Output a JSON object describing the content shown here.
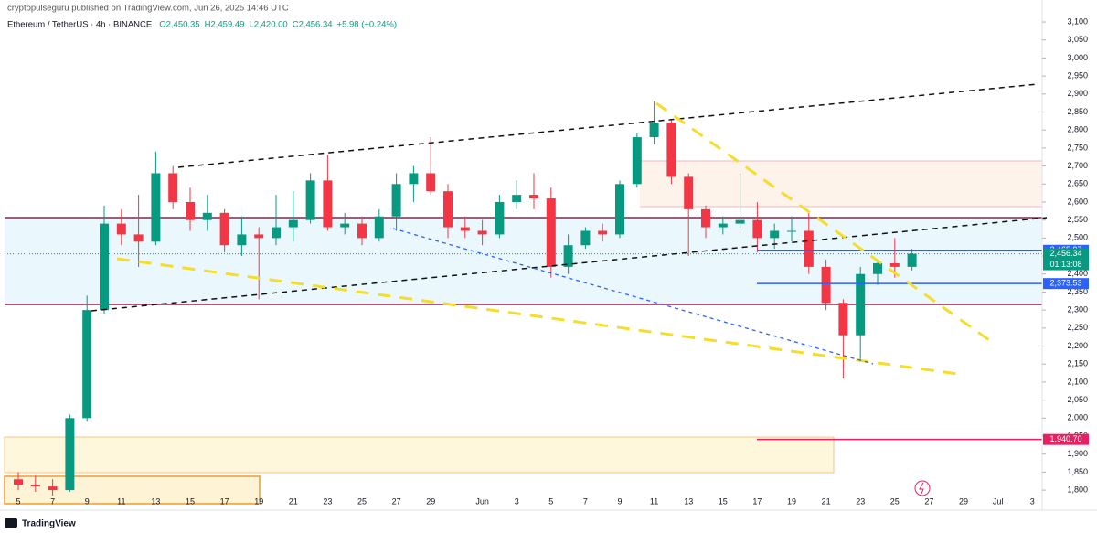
{
  "chart_data": {
    "type": "candlestick",
    "publisher": "cryptopulseguru published on TradingView.com, Jun 26, 2025 14:46 UTC",
    "title": "Ethereum / TetherUS · 4h · BINANCE",
    "legend_text": [
      "O2,450.35",
      "H2,459.49",
      "L2,420.00",
      "C2,456.34",
      "+5.98 (+0.24%)"
    ],
    "brand": "TradingView",
    "categories": [
      "5",
      null,
      "7",
      null,
      "9",
      null,
      "11",
      null,
      "13",
      null,
      "15",
      null,
      "17",
      null,
      "19",
      null,
      "21",
      null,
      "23",
      null,
      "25",
      null,
      "27",
      null,
      "29",
      null,
      null,
      "Jun",
      null,
      "3",
      null,
      "5",
      null,
      "7",
      null,
      "9",
      null,
      "11",
      null,
      "13",
      null,
      "15",
      null,
      "17",
      null,
      "19",
      null,
      "21",
      null,
      "23",
      null,
      "25",
      null,
      "27",
      null,
      "29",
      null,
      "Jul",
      null,
      "3"
    ],
    "open": [
      1830,
      1815,
      1810,
      1800,
      2000,
      2300,
      2540,
      2510,
      2490,
      2680,
      2600,
      2550,
      2570,
      2480,
      2510,
      2500,
      2530,
      2550,
      2660,
      2530,
      2540,
      2500,
      2560,
      2650,
      2680,
      2630,
      2530,
      2520,
      2510,
      2600,
      2620,
      2610,
      2420,
      2480,
      2520,
      2510,
      2650,
      2780,
      2820,
      2670,
      2580,
      2530,
      2540,
      2550,
      2500,
      2520,
      2520,
      2420,
      2320,
      2230,
      2400,
      2430,
      2420,
      null,
      null,
      null,
      null,
      null,
      null,
      null
    ],
    "high": [
      1850,
      1840,
      1830,
      2010,
      2340,
      2590,
      2580,
      2620,
      2740,
      2700,
      2640,
      2620,
      2580,
      2560,
      2530,
      2620,
      2630,
      2680,
      2730,
      2570,
      2560,
      2580,
      2680,
      2700,
      2780,
      2650,
      2560,
      2550,
      2620,
      2660,
      2680,
      2640,
      2510,
      2530,
      2540,
      2660,
      2790,
      2880,
      2830,
      2680,
      2590,
      2560,
      2680,
      2600,
      2540,
      2560,
      2570,
      2440,
      2330,
      2420,
      2440,
      2500,
      2470,
      null,
      null,
      null,
      null,
      null,
      null,
      null
    ],
    "low": [
      1800,
      1795,
      1785,
      1795,
      1990,
      2290,
      2480,
      2420,
      2480,
      2580,
      2520,
      2520,
      2460,
      2450,
      2330,
      2480,
      2490,
      2540,
      2520,
      2510,
      2480,
      2490,
      2520,
      2600,
      2620,
      2500,
      2500,
      2480,
      2500,
      2580,
      2580,
      2390,
      2400,
      2470,
      2490,
      2500,
      2640,
      2760,
      2650,
      2450,
      2500,
      2510,
      2530,
      2460,
      2470,
      2490,
      2400,
      2300,
      2110,
      2160,
      2370,
      2390,
      2410,
      null,
      null,
      null,
      null,
      null,
      null,
      null
    ],
    "close": [
      1815,
      1810,
      1800,
      2000,
      2300,
      2540,
      2510,
      2490,
      2680,
      2600,
      2550,
      2570,
      2480,
      2510,
      2500,
      2530,
      2550,
      2660,
      2530,
      2540,
      2500,
      2560,
      2650,
      2680,
      2630,
      2530,
      2520,
      2510,
      2600,
      2620,
      2610,
      2420,
      2480,
      2520,
      2510,
      2650,
      2780,
      2820,
      2670,
      2580,
      2530,
      2540,
      2550,
      2500,
      2520,
      2520,
      2420,
      2320,
      2230,
      2400,
      2430,
      2420,
      2456.34,
      null,
      null,
      null,
      null,
      null,
      null,
      null
    ],
    "up_color": "#089981",
    "down_color": "#f23645",
    "ylim": [
      1752,
      3161
    ],
    "yticks": [
      {
        "value": 1800,
        "label": "1,800"
      },
      {
        "value": 1850,
        "label": "1,850"
      },
      {
        "value": 1900,
        "label": "1,900"
      },
      {
        "value": 1950,
        "label": "1,950"
      },
      {
        "value": 2000,
        "label": "2,000"
      },
      {
        "value": 2050,
        "label": "2,050"
      },
      {
        "value": 2100,
        "label": "2,100"
      },
      {
        "value": 2150,
        "label": "2,150"
      },
      {
        "value": 2200,
        "label": "2,200"
      },
      {
        "value": 2250,
        "label": "2,250"
      },
      {
        "value": 2300,
        "label": "2,300"
      },
      {
        "value": 2350,
        "label": "2,350"
      },
      {
        "value": 2400,
        "label": "2,400"
      },
      {
        "value": 2450,
        "label": "2,450"
      },
      {
        "value": 2500,
        "label": "2,500"
      },
      {
        "value": 2550,
        "label": "2,550"
      },
      {
        "value": 2600,
        "label": "2,600"
      },
      {
        "value": 2650,
        "label": "2,650"
      },
      {
        "value": 2700,
        "label": "2,700"
      },
      {
        "value": 2750,
        "label": "2,750"
      },
      {
        "value": 2800,
        "label": "2,800"
      },
      {
        "value": 2850,
        "label": "2,850"
      },
      {
        "value": 2900,
        "label": "2,900"
      },
      {
        "value": 2950,
        "label": "2,950"
      },
      {
        "value": 3000,
        "label": "3,000"
      },
      {
        "value": 3050,
        "label": "3,050"
      },
      {
        "value": 3100,
        "label": "3,100"
      }
    ],
    "grid": false,
    "price_labels": [
      {
        "value": 2465.97,
        "label": "2,465.97",
        "color": "#2962ff"
      },
      {
        "value": 2456.34,
        "label": "2,456.34",
        "color": "#089981",
        "countdown": "01:13:08"
      },
      {
        "value": 2373.53,
        "label": "2,373.53",
        "color": "#2962ff"
      },
      {
        "value": 1940.7,
        "label": "1,940.70",
        "color": "#e91e63"
      }
    ]
  }
}
